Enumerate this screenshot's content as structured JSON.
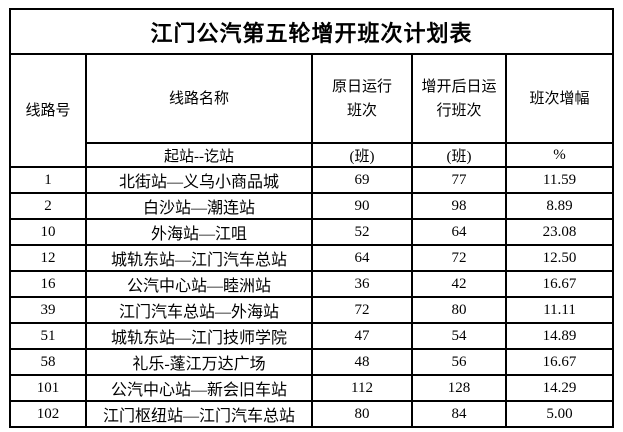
{
  "title": "江门公汽第五轮增开班次计划表",
  "colors": {
    "accent_red": "#FF0000",
    "border": "#000000",
    "background": "#FFFFFF"
  },
  "table": {
    "headers": {
      "route_no": "线路号",
      "route_name": "线路名称",
      "original_trips": "原日运行\n班次",
      "increased_trips": "增开后日运\n行班次",
      "increase_rate": "班次增幅"
    },
    "subheaders": {
      "route_name_unit": "起站--讫站",
      "original_trips_unit": "(班)",
      "increased_trips_unit": "(班)",
      "increase_rate_unit": "%"
    },
    "rows": [
      {
        "route": "1",
        "name": "北街站—义乌小商品城",
        "original": "69",
        "increased": "77",
        "rate": "11.59"
      },
      {
        "route": "2",
        "name": "白沙站—潮连站",
        "original": "90",
        "increased": "98",
        "rate": "8.89"
      },
      {
        "route": "10",
        "name": "外海站—江咀",
        "original": "52",
        "increased": "64",
        "rate": "23.08"
      },
      {
        "route": "12",
        "name": "城轨东站—江门汽车总站",
        "original": "64",
        "increased": "72",
        "rate": "12.50"
      },
      {
        "route": "16",
        "name": "公汽中心站—睦洲站",
        "original": "36",
        "increased": "42",
        "rate": "16.67"
      },
      {
        "route": "39",
        "name": "江门汽车总站—外海站",
        "original": "72",
        "increased": "80",
        "rate": "11.11"
      },
      {
        "route": "51",
        "name": "城轨东站—江门技师学院",
        "original": "47",
        "increased": "54",
        "rate": "14.89"
      },
      {
        "route": "58",
        "name": "礼乐-蓬江万达广场",
        "original": "48",
        "increased": "56",
        "rate": "16.67"
      },
      {
        "route": "101",
        "name": "公汽中心站—新会旧车站",
        "original": "112",
        "increased": "128",
        "rate": "14.29"
      },
      {
        "route": "102",
        "name": "江门枢纽站—江门汽车总站",
        "original": "80",
        "increased": "84",
        "rate": "5.00"
      }
    ]
  }
}
